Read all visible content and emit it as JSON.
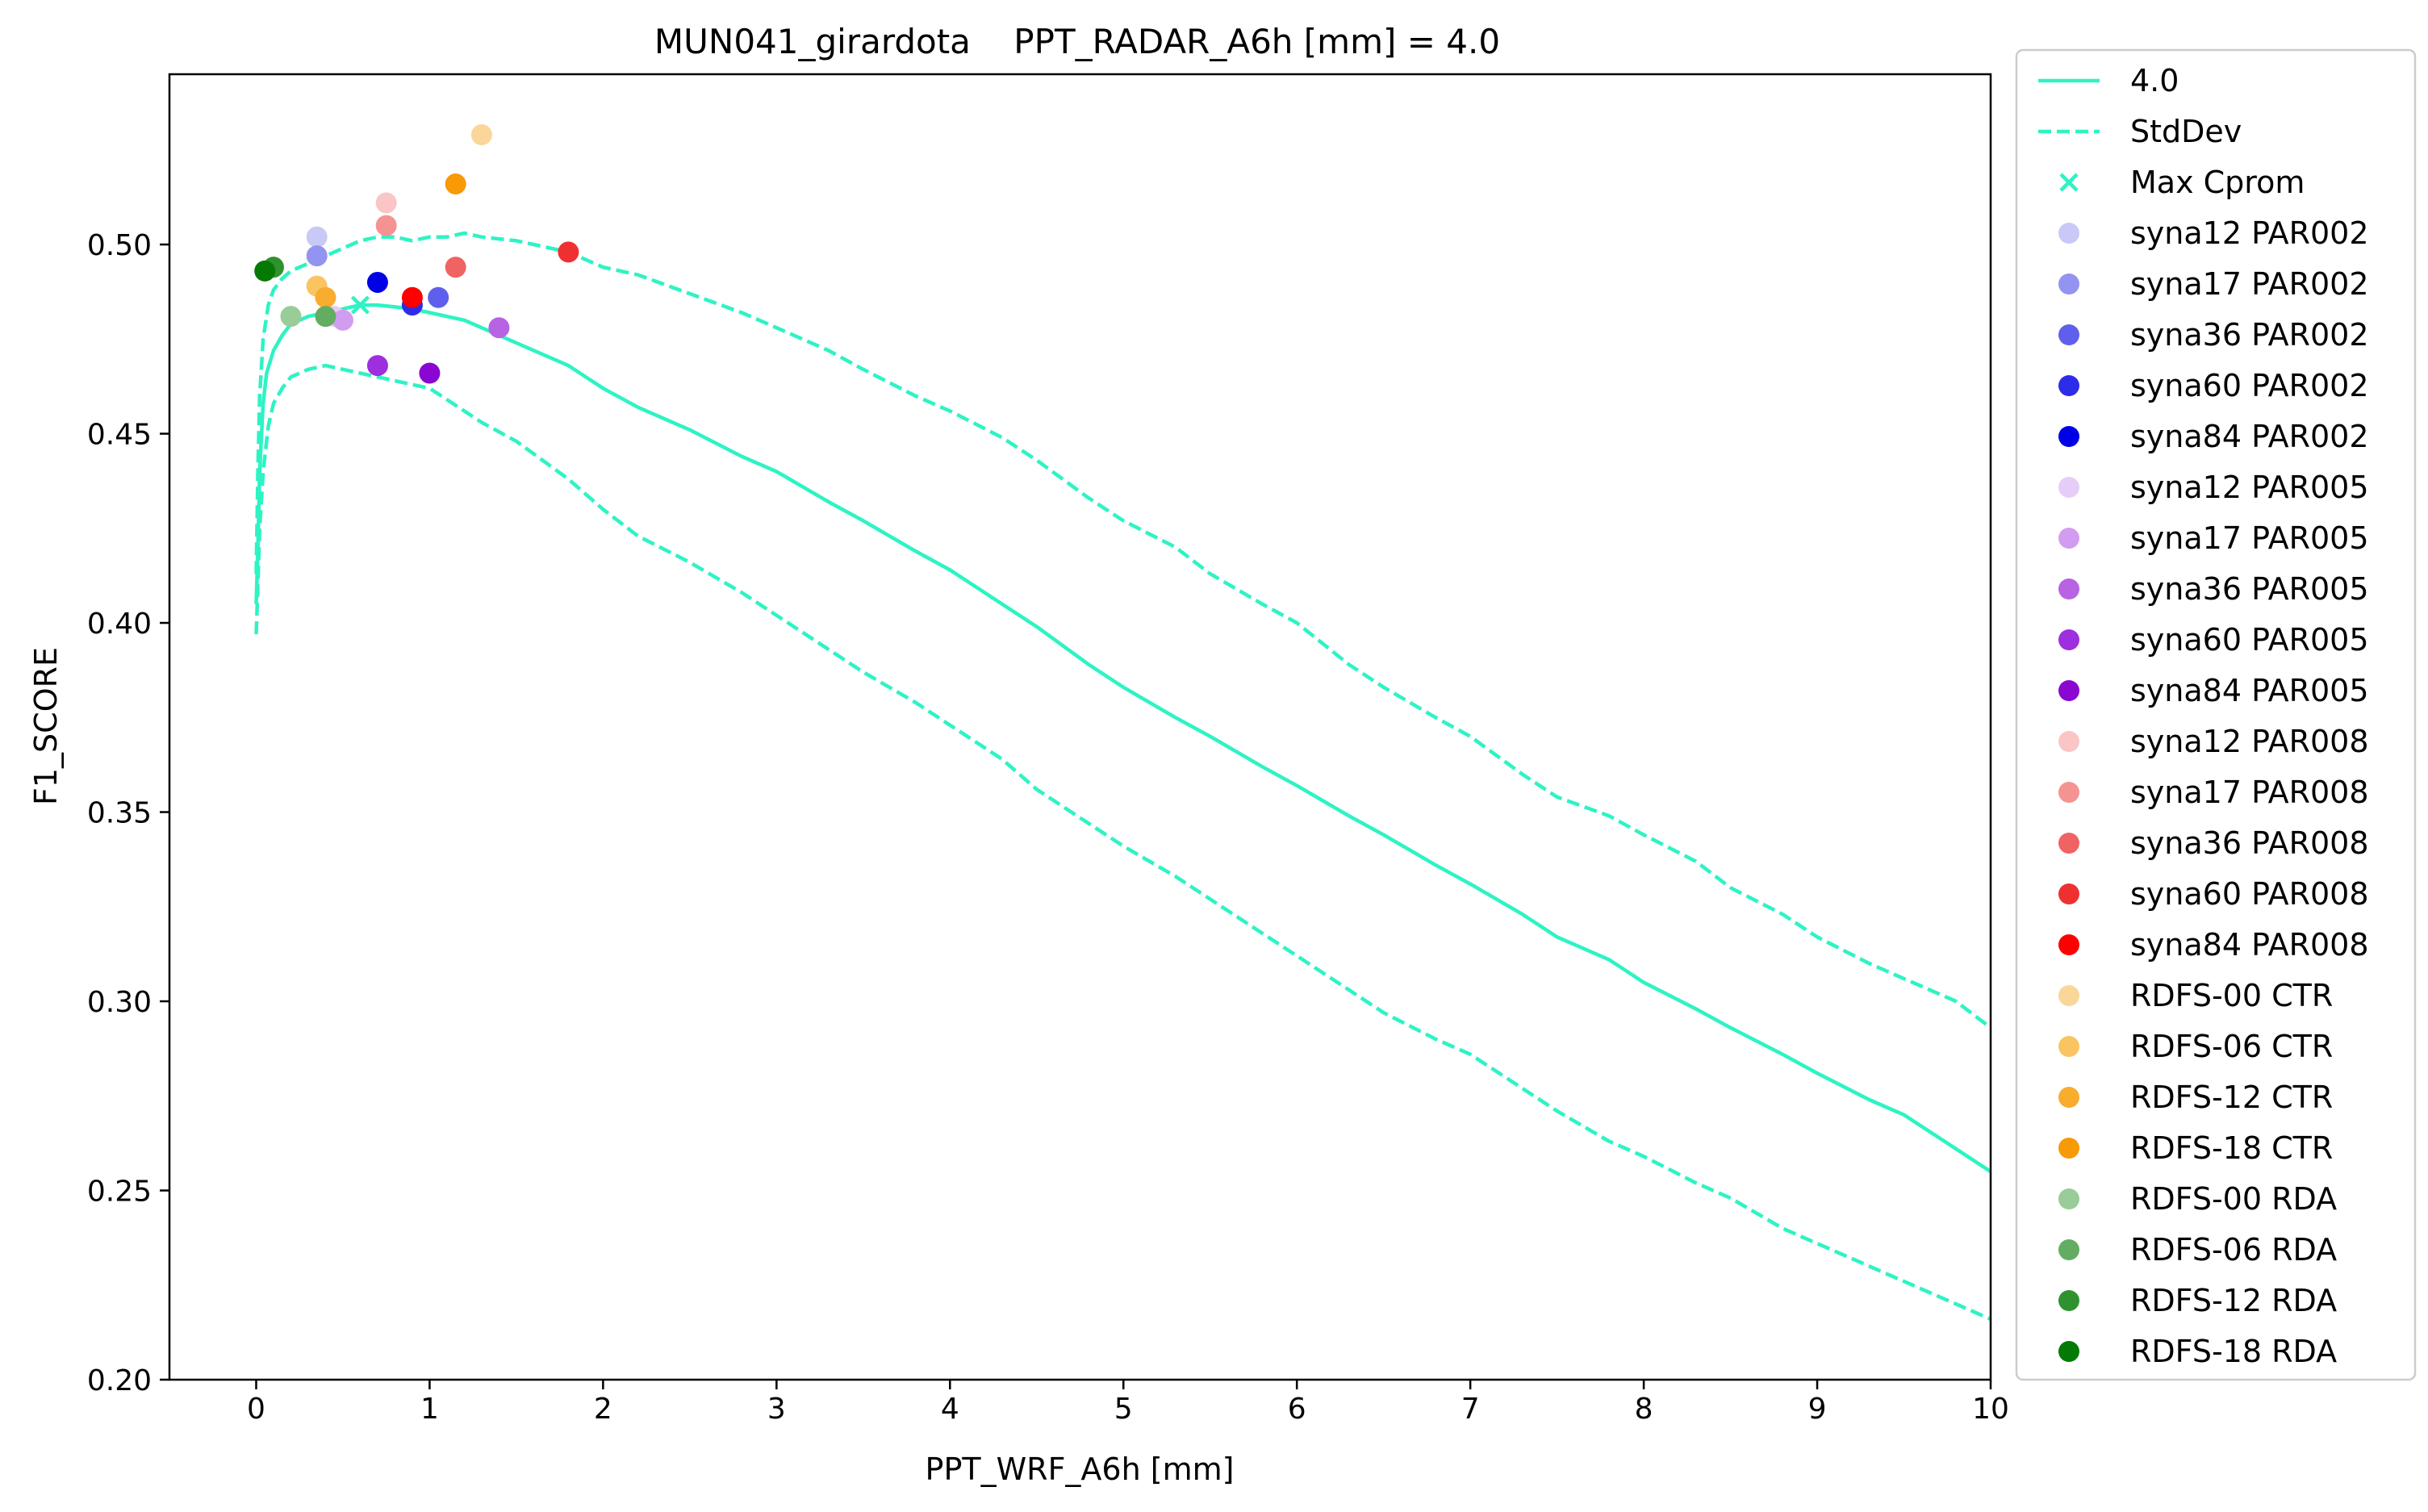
{
  "chart_data": {
    "type": "line",
    "title": "MUN041_girardota    PPT_RADAR_A6h [mm] = 4.0",
    "xlabel": "PPT_WRF_A6h [mm]",
    "ylabel": "F1_SCORE",
    "xlim": [
      -0.5,
      10
    ],
    "ylim": [
      0.2,
      0.545
    ],
    "x_ticks": [
      0,
      1,
      2,
      3,
      4,
      5,
      6,
      7,
      8,
      9,
      10
    ],
    "y_ticks": [
      0.2,
      0.25,
      0.3,
      0.35,
      0.4,
      0.45,
      0.5
    ],
    "x_tick_labels": [
      "0",
      "1",
      "2",
      "3",
      "4",
      "5",
      "6",
      "7",
      "8",
      "9",
      "10"
    ],
    "y_tick_labels": [
      "0.20",
      "0.25",
      "0.30",
      "0.35",
      "0.40",
      "0.45",
      "0.50"
    ],
    "grid": false,
    "legend_placement": "outside right",
    "line_color": "#2ef3c4",
    "series": [
      {
        "name": "4.0",
        "style": "solid",
        "color": "#2ef3c4",
        "points": [
          [
            0.0,
            0.405
          ],
          [
            0.01,
            0.42
          ],
          [
            0.02,
            0.44
          ],
          [
            0.04,
            0.458
          ],
          [
            0.06,
            0.466
          ],
          [
            0.1,
            0.472
          ],
          [
            0.15,
            0.476
          ],
          [
            0.2,
            0.479
          ],
          [
            0.3,
            0.481
          ],
          [
            0.4,
            0.482
          ],
          [
            0.5,
            0.483
          ],
          [
            0.6,
            0.484
          ],
          [
            0.7,
            0.484
          ],
          [
            0.8,
            0.4835
          ],
          [
            0.9,
            0.483
          ],
          [
            1.0,
            0.482
          ],
          [
            1.1,
            0.481
          ],
          [
            1.2,
            0.48
          ],
          [
            1.3,
            0.478
          ],
          [
            1.5,
            0.474
          ],
          [
            1.8,
            0.468
          ],
          [
            2.0,
            0.462
          ],
          [
            2.2,
            0.457
          ],
          [
            2.5,
            0.451
          ],
          [
            2.8,
            0.444
          ],
          [
            3.0,
            0.44
          ],
          [
            3.3,
            0.432
          ],
          [
            3.5,
            0.427
          ],
          [
            3.8,
            0.419
          ],
          [
            4.0,
            0.414
          ],
          [
            4.3,
            0.405
          ],
          [
            4.5,
            0.399
          ],
          [
            4.8,
            0.389
          ],
          [
            5.0,
            0.383
          ],
          [
            5.3,
            0.375
          ],
          [
            5.5,
            0.37
          ],
          [
            5.8,
            0.362
          ],
          [
            6.0,
            0.357
          ],
          [
            6.3,
            0.349
          ],
          [
            6.5,
            0.344
          ],
          [
            6.8,
            0.336
          ],
          [
            7.0,
            0.331
          ],
          [
            7.3,
            0.323
          ],
          [
            7.5,
            0.317
          ],
          [
            7.8,
            0.311
          ],
          [
            8.0,
            0.305
          ],
          [
            8.3,
            0.298
          ],
          [
            8.5,
            0.293
          ],
          [
            8.8,
            0.286
          ],
          [
            9.0,
            0.281
          ],
          [
            9.3,
            0.274
          ],
          [
            9.5,
            0.27
          ],
          [
            9.8,
            0.261
          ],
          [
            10.0,
            0.255
          ]
        ]
      },
      {
        "name": "StdDev",
        "style": "dashed",
        "color": "#2ef3c4",
        "points": [
          [
            0.0,
            0.413
          ],
          [
            0.01,
            0.44
          ],
          [
            0.02,
            0.46
          ],
          [
            0.04,
            0.475
          ],
          [
            0.07,
            0.484
          ],
          [
            0.1,
            0.488
          ],
          [
            0.15,
            0.491
          ],
          [
            0.2,
            0.493
          ],
          [
            0.3,
            0.495
          ],
          [
            0.4,
            0.497
          ],
          [
            0.5,
            0.499
          ],
          [
            0.6,
            0.501
          ],
          [
            0.7,
            0.502
          ],
          [
            0.8,
            0.502
          ],
          [
            0.9,
            0.501
          ],
          [
            1.0,
            0.502
          ],
          [
            1.1,
            0.502
          ],
          [
            1.2,
            0.503
          ],
          [
            1.3,
            0.502
          ],
          [
            1.5,
            0.501
          ],
          [
            1.8,
            0.498
          ],
          [
            2.0,
            0.494
          ],
          [
            2.2,
            0.492
          ],
          [
            2.5,
            0.487
          ],
          [
            2.8,
            0.482
          ],
          [
            3.0,
            0.478
          ],
          [
            3.3,
            0.472
          ],
          [
            3.5,
            0.467
          ],
          [
            3.8,
            0.46
          ],
          [
            4.0,
            0.456
          ],
          [
            4.3,
            0.449
          ],
          [
            4.5,
            0.443
          ],
          [
            4.8,
            0.433
          ],
          [
            5.0,
            0.427
          ],
          [
            5.3,
            0.42
          ],
          [
            5.5,
            0.413
          ],
          [
            5.8,
            0.405
          ],
          [
            6.0,
            0.4
          ],
          [
            6.3,
            0.389
          ],
          [
            6.5,
            0.383
          ],
          [
            6.8,
            0.375
          ],
          [
            7.0,
            0.37
          ],
          [
            7.3,
            0.36
          ],
          [
            7.5,
            0.354
          ],
          [
            7.8,
            0.349
          ],
          [
            8.0,
            0.344
          ],
          [
            8.3,
            0.337
          ],
          [
            8.5,
            0.33
          ],
          [
            8.8,
            0.323
          ],
          [
            9.0,
            0.317
          ],
          [
            9.3,
            0.31
          ],
          [
            9.5,
            0.306
          ],
          [
            9.8,
            0.3
          ],
          [
            10.0,
            0.293
          ]
        ]
      },
      {
        "name": "",
        "style": "dashed",
        "color": "#2ef3c4",
        "points": [
          [
            0.0,
            0.397
          ],
          [
            0.01,
            0.41
          ],
          [
            0.02,
            0.425
          ],
          [
            0.04,
            0.44
          ],
          [
            0.07,
            0.452
          ],
          [
            0.1,
            0.458
          ],
          [
            0.15,
            0.462
          ],
          [
            0.2,
            0.465
          ],
          [
            0.3,
            0.467
          ],
          [
            0.4,
            0.468
          ],
          [
            0.5,
            0.467
          ],
          [
            0.6,
            0.466
          ],
          [
            0.7,
            0.465
          ],
          [
            0.8,
            0.464
          ],
          [
            0.9,
            0.463
          ],
          [
            1.0,
            0.462
          ],
          [
            1.1,
            0.459
          ],
          [
            1.2,
            0.456
          ],
          [
            1.3,
            0.453
          ],
          [
            1.5,
            0.448
          ],
          [
            1.8,
            0.438
          ],
          [
            2.0,
            0.43
          ],
          [
            2.2,
            0.423
          ],
          [
            2.5,
            0.416
          ],
          [
            2.8,
            0.408
          ],
          [
            3.0,
            0.402
          ],
          [
            3.3,
            0.393
          ],
          [
            3.5,
            0.387
          ],
          [
            3.8,
            0.379
          ],
          [
            4.0,
            0.373
          ],
          [
            4.3,
            0.364
          ],
          [
            4.5,
            0.356
          ],
          [
            4.8,
            0.347
          ],
          [
            5.0,
            0.341
          ],
          [
            5.3,
            0.333
          ],
          [
            5.5,
            0.327
          ],
          [
            5.8,
            0.318
          ],
          [
            6.0,
            0.312
          ],
          [
            6.3,
            0.303
          ],
          [
            6.5,
            0.297
          ],
          [
            6.8,
            0.29
          ],
          [
            7.0,
            0.286
          ],
          [
            7.3,
            0.277
          ],
          [
            7.5,
            0.271
          ],
          [
            7.8,
            0.263
          ],
          [
            8.0,
            0.259
          ],
          [
            8.3,
            0.252
          ],
          [
            8.5,
            0.248
          ],
          [
            8.8,
            0.24
          ],
          [
            9.0,
            0.236
          ],
          [
            9.3,
            0.23
          ],
          [
            9.5,
            0.226
          ],
          [
            9.8,
            0.22
          ],
          [
            10.0,
            0.216
          ]
        ]
      }
    ],
    "max_marker": {
      "name": "Max Cprom",
      "x": 0.6,
      "y": 0.484,
      "color": "#2ef3c4"
    },
    "scatter": [
      {
        "name": "syna12 PAR002",
        "color": "#c9c9f7",
        "x": 0.35,
        "y": 0.502
      },
      {
        "name": "syna17 PAR002",
        "color": "#9393f1",
        "x": 0.35,
        "y": 0.497
      },
      {
        "name": "syna36 PAR002",
        "color": "#5f5fed",
        "x": 1.05,
        "y": 0.486
      },
      {
        "name": "syna60 PAR002",
        "color": "#2c2ce9",
        "x": 0.9,
        "y": 0.484
      },
      {
        "name": "syna84 PAR002",
        "color": "#0000e6",
        "x": 0.7,
        "y": 0.49
      },
      {
        "name": "syna12 PAR005",
        "color": "#e6cdf7",
        "x": 0.45,
        "y": 0.481
      },
      {
        "name": "syna17 PAR005",
        "color": "#d29df0",
        "x": 0.5,
        "y": 0.48
      },
      {
        "name": "syna36 PAR005",
        "color": "#b763e3",
        "x": 1.4,
        "y": 0.478
      },
      {
        "name": "syna60 PAR005",
        "color": "#9d2fde",
        "x": 0.7,
        "y": 0.468
      },
      {
        "name": "syna84 PAR005",
        "color": "#8a07d2",
        "x": 1.0,
        "y": 0.466
      },
      {
        "name": "syna12 PAR008",
        "color": "#f9c5c5",
        "x": 0.75,
        "y": 0.511
      },
      {
        "name": "syna17 PAR008",
        "color": "#f59393",
        "x": 0.75,
        "y": 0.505
      },
      {
        "name": "syna36 PAR008",
        "color": "#f06363",
        "x": 1.15,
        "y": 0.494
      },
      {
        "name": "syna60 PAR008",
        "color": "#ef3030",
        "x": 1.8,
        "y": 0.498
      },
      {
        "name": "syna84 PAR008",
        "color": "#ff0000",
        "x": 0.9,
        "y": 0.486
      },
      {
        "name": "RDFS-00 CTR",
        "color": "#fad699",
        "x": 1.3,
        "y": 0.529
      },
      {
        "name": "RDFS-06 CTR",
        "color": "#fac461",
        "x": 0.35,
        "y": 0.489
      },
      {
        "name": "RDFS-12 CTR",
        "color": "#f8ad2e",
        "x": 0.4,
        "y": 0.486
      },
      {
        "name": "RDFS-18 CTR",
        "color": "#f79a06",
        "x": 1.15,
        "y": 0.516
      },
      {
        "name": "RDFS-00 RDA",
        "color": "#98cc98",
        "x": 0.2,
        "y": 0.481
      },
      {
        "name": "RDFS-06 RDA",
        "color": "#63ad63",
        "x": 0.4,
        "y": 0.481
      },
      {
        "name": "RDFS-12 RDA",
        "color": "#2f922f",
        "x": 0.1,
        "y": 0.494
      },
      {
        "name": "RDFS-18 RDA",
        "color": "#047a04",
        "x": 0.05,
        "y": 0.493
      }
    ]
  }
}
